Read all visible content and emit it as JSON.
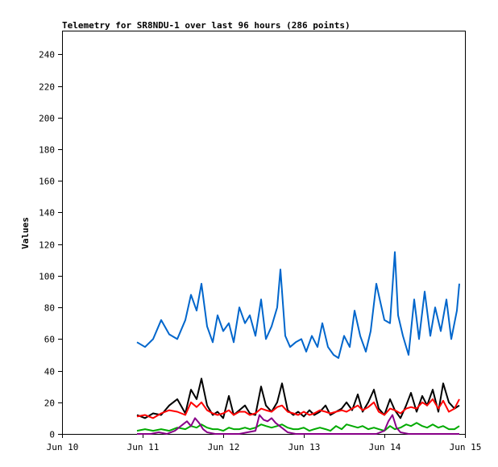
{
  "chart_data": {
    "type": "line",
    "title": "Telemetry for SR8NDU-1 over last 96 hours (286 points)",
    "xlabel": "",
    "ylabel": "Values",
    "x_ticks": [
      "Jun 10",
      "Jun 11",
      "Jun 12",
      "Jun 13",
      "Jun 14",
      "Jun 15"
    ],
    "xlim": [
      "Jun 10",
      "Jun 15"
    ],
    "ylim": [
      0,
      255
    ],
    "y_ticks": [
      0,
      20,
      40,
      60,
      80,
      100,
      120,
      140,
      160,
      180,
      200,
      220,
      240
    ],
    "grid": false,
    "x_range_days": [
      10.93,
      14.93
    ],
    "series": [
      {
        "color": "#0066cc",
        "x": [
          10.93,
          11.03,
          11.13,
          11.23,
          11.33,
          11.43,
          11.53,
          11.6,
          11.67,
          11.73,
          11.8,
          11.87,
          11.93,
          12.0,
          12.07,
          12.13,
          12.2,
          12.27,
          12.33,
          12.4,
          12.47,
          12.53,
          12.6,
          12.67,
          12.71,
          12.77,
          12.83,
          12.9,
          12.97,
          13.03,
          13.1,
          13.17,
          13.23,
          13.3,
          13.37,
          13.43,
          13.5,
          13.57,
          13.63,
          13.7,
          13.77,
          13.83,
          13.9,
          13.93,
          14.0,
          14.07,
          14.13,
          14.17,
          14.23,
          14.3,
          14.37,
          14.43,
          14.5,
          14.57,
          14.63,
          14.7,
          14.77,
          14.83,
          14.9,
          14.93
        ],
        "y": [
          58,
          55,
          60,
          72,
          63,
          60,
          72,
          88,
          78,
          95,
          68,
          58,
          75,
          65,
          70,
          58,
          80,
          70,
          75,
          62,
          85,
          60,
          68,
          80,
          104,
          62,
          55,
          58,
          60,
          52,
          62,
          55,
          70,
          55,
          50,
          48,
          62,
          55,
          78,
          62,
          52,
          65,
          95,
          88,
          72,
          70,
          115,
          75,
          62,
          50,
          85,
          60,
          90,
          62,
          80,
          65,
          85,
          60,
          78,
          95
        ]
      },
      {
        "color": "#000000",
        "x": [
          10.93,
          11.03,
          11.13,
          11.23,
          11.33,
          11.43,
          11.53,
          11.6,
          11.67,
          11.73,
          11.8,
          11.87,
          11.93,
          12.0,
          12.07,
          12.13,
          12.2,
          12.27,
          12.33,
          12.4,
          12.47,
          12.53,
          12.6,
          12.67,
          12.73,
          12.8,
          12.87,
          12.93,
          13.0,
          13.07,
          13.13,
          13.2,
          13.27,
          13.33,
          13.4,
          13.47,
          13.53,
          13.6,
          13.67,
          13.73,
          13.8,
          13.87,
          13.93,
          14.0,
          14.07,
          14.13,
          14.2,
          14.27,
          14.33,
          14.4,
          14.47,
          14.53,
          14.6,
          14.67,
          14.73,
          14.8,
          14.87,
          14.93
        ],
        "y": [
          12,
          10,
          13,
          12,
          18,
          22,
          13,
          28,
          22,
          35,
          18,
          12,
          14,
          10,
          24,
          12,
          15,
          18,
          13,
          12,
          30,
          18,
          14,
          20,
          32,
          15,
          12,
          14,
          11,
          15,
          12,
          14,
          18,
          12,
          14,
          16,
          20,
          15,
          25,
          14,
          20,
          28,
          16,
          12,
          22,
          15,
          10,
          18,
          26,
          14,
          24,
          18,
          28,
          14,
          32,
          20,
          16,
          18
        ]
      },
      {
        "color": "#ff0000",
        "x": [
          10.93,
          11.03,
          11.13,
          11.23,
          11.33,
          11.43,
          11.53,
          11.6,
          11.67,
          11.73,
          11.8,
          11.87,
          11.93,
          12.0,
          12.07,
          12.13,
          12.2,
          12.27,
          12.33,
          12.4,
          12.47,
          12.53,
          12.6,
          12.67,
          12.73,
          12.8,
          12.87,
          12.93,
          13.0,
          13.07,
          13.13,
          13.2,
          13.27,
          13.33,
          13.4,
          13.47,
          13.53,
          13.6,
          13.67,
          13.73,
          13.8,
          13.87,
          13.93,
          14.0,
          14.07,
          14.13,
          14.2,
          14.27,
          14.33,
          14.4,
          14.47,
          14.53,
          14.6,
          14.67,
          14.73,
          14.8,
          14.87,
          14.93
        ],
        "y": [
          11,
          12,
          10,
          13,
          15,
          14,
          12,
          20,
          17,
          20,
          15,
          13,
          12,
          13,
          15,
          12,
          14,
          14,
          12,
          13,
          16,
          15,
          14,
          17,
          18,
          14,
          13,
          12,
          14,
          12,
          13,
          15,
          14,
          13,
          14,
          15,
          14,
          16,
          18,
          15,
          17,
          20,
          14,
          12,
          16,
          15,
          13,
          16,
          17,
          16,
          20,
          18,
          22,
          16,
          21,
          14,
          16,
          22
        ]
      },
      {
        "color": "#00aa00",
        "x": [
          10.93,
          11.03,
          11.13,
          11.23,
          11.33,
          11.43,
          11.53,
          11.6,
          11.67,
          11.73,
          11.8,
          11.87,
          11.93,
          12.0,
          12.07,
          12.13,
          12.2,
          12.27,
          12.33,
          12.4,
          12.47,
          12.53,
          12.6,
          12.67,
          12.73,
          12.8,
          12.87,
          12.93,
          13.0,
          13.07,
          13.13,
          13.2,
          13.27,
          13.33,
          13.4,
          13.47,
          13.53,
          13.6,
          13.67,
          13.73,
          13.8,
          13.87,
          13.93,
          14.0,
          14.07,
          14.13,
          14.2,
          14.27,
          14.33,
          14.4,
          14.47,
          14.53,
          14.6,
          14.67,
          14.73,
          14.8,
          14.87,
          14.93
        ],
        "y": [
          2,
          3,
          2,
          3,
          2,
          4,
          3,
          5,
          4,
          6,
          4,
          3,
          3,
          2,
          4,
          3,
          3,
          4,
          3,
          4,
          6,
          5,
          4,
          5,
          6,
          4,
          3,
          3,
          4,
          2,
          3,
          4,
          3,
          2,
          5,
          3,
          6,
          5,
          4,
          5,
          3,
          4,
          3,
          2,
          5,
          3,
          4,
          6,
          5,
          7,
          5,
          4,
          6,
          4,
          5,
          3,
          3,
          5
        ]
      },
      {
        "color": "#880088",
        "x": [
          10.93,
          11.0,
          11.1,
          11.2,
          11.3,
          11.4,
          11.5,
          11.55,
          11.6,
          11.65,
          11.7,
          11.75,
          11.8,
          11.9,
          12.0,
          12.1,
          12.2,
          12.3,
          12.4,
          12.45,
          12.5,
          12.55,
          12.6,
          12.65,
          12.7,
          12.75,
          12.8,
          12.9,
          13.0,
          13.1,
          13.2,
          13.3,
          13.4,
          13.5,
          13.6,
          13.7,
          13.8,
          13.9,
          14.0,
          14.05,
          14.1,
          14.15,
          14.2,
          14.3,
          14.4,
          14.5,
          14.6,
          14.7,
          14.8,
          14.9,
          14.93
        ],
        "y": [
          0,
          0,
          0,
          1,
          0,
          2,
          6,
          8,
          5,
          10,
          7,
          3,
          1,
          0,
          0,
          0,
          0,
          1,
          2,
          12,
          9,
          8,
          10,
          7,
          5,
          3,
          1,
          0,
          0,
          0,
          0,
          0,
          0,
          0,
          0,
          0,
          0,
          0,
          2,
          8,
          12,
          4,
          1,
          0,
          0,
          0,
          0,
          0,
          0,
          0,
          0
        ]
      }
    ]
  }
}
